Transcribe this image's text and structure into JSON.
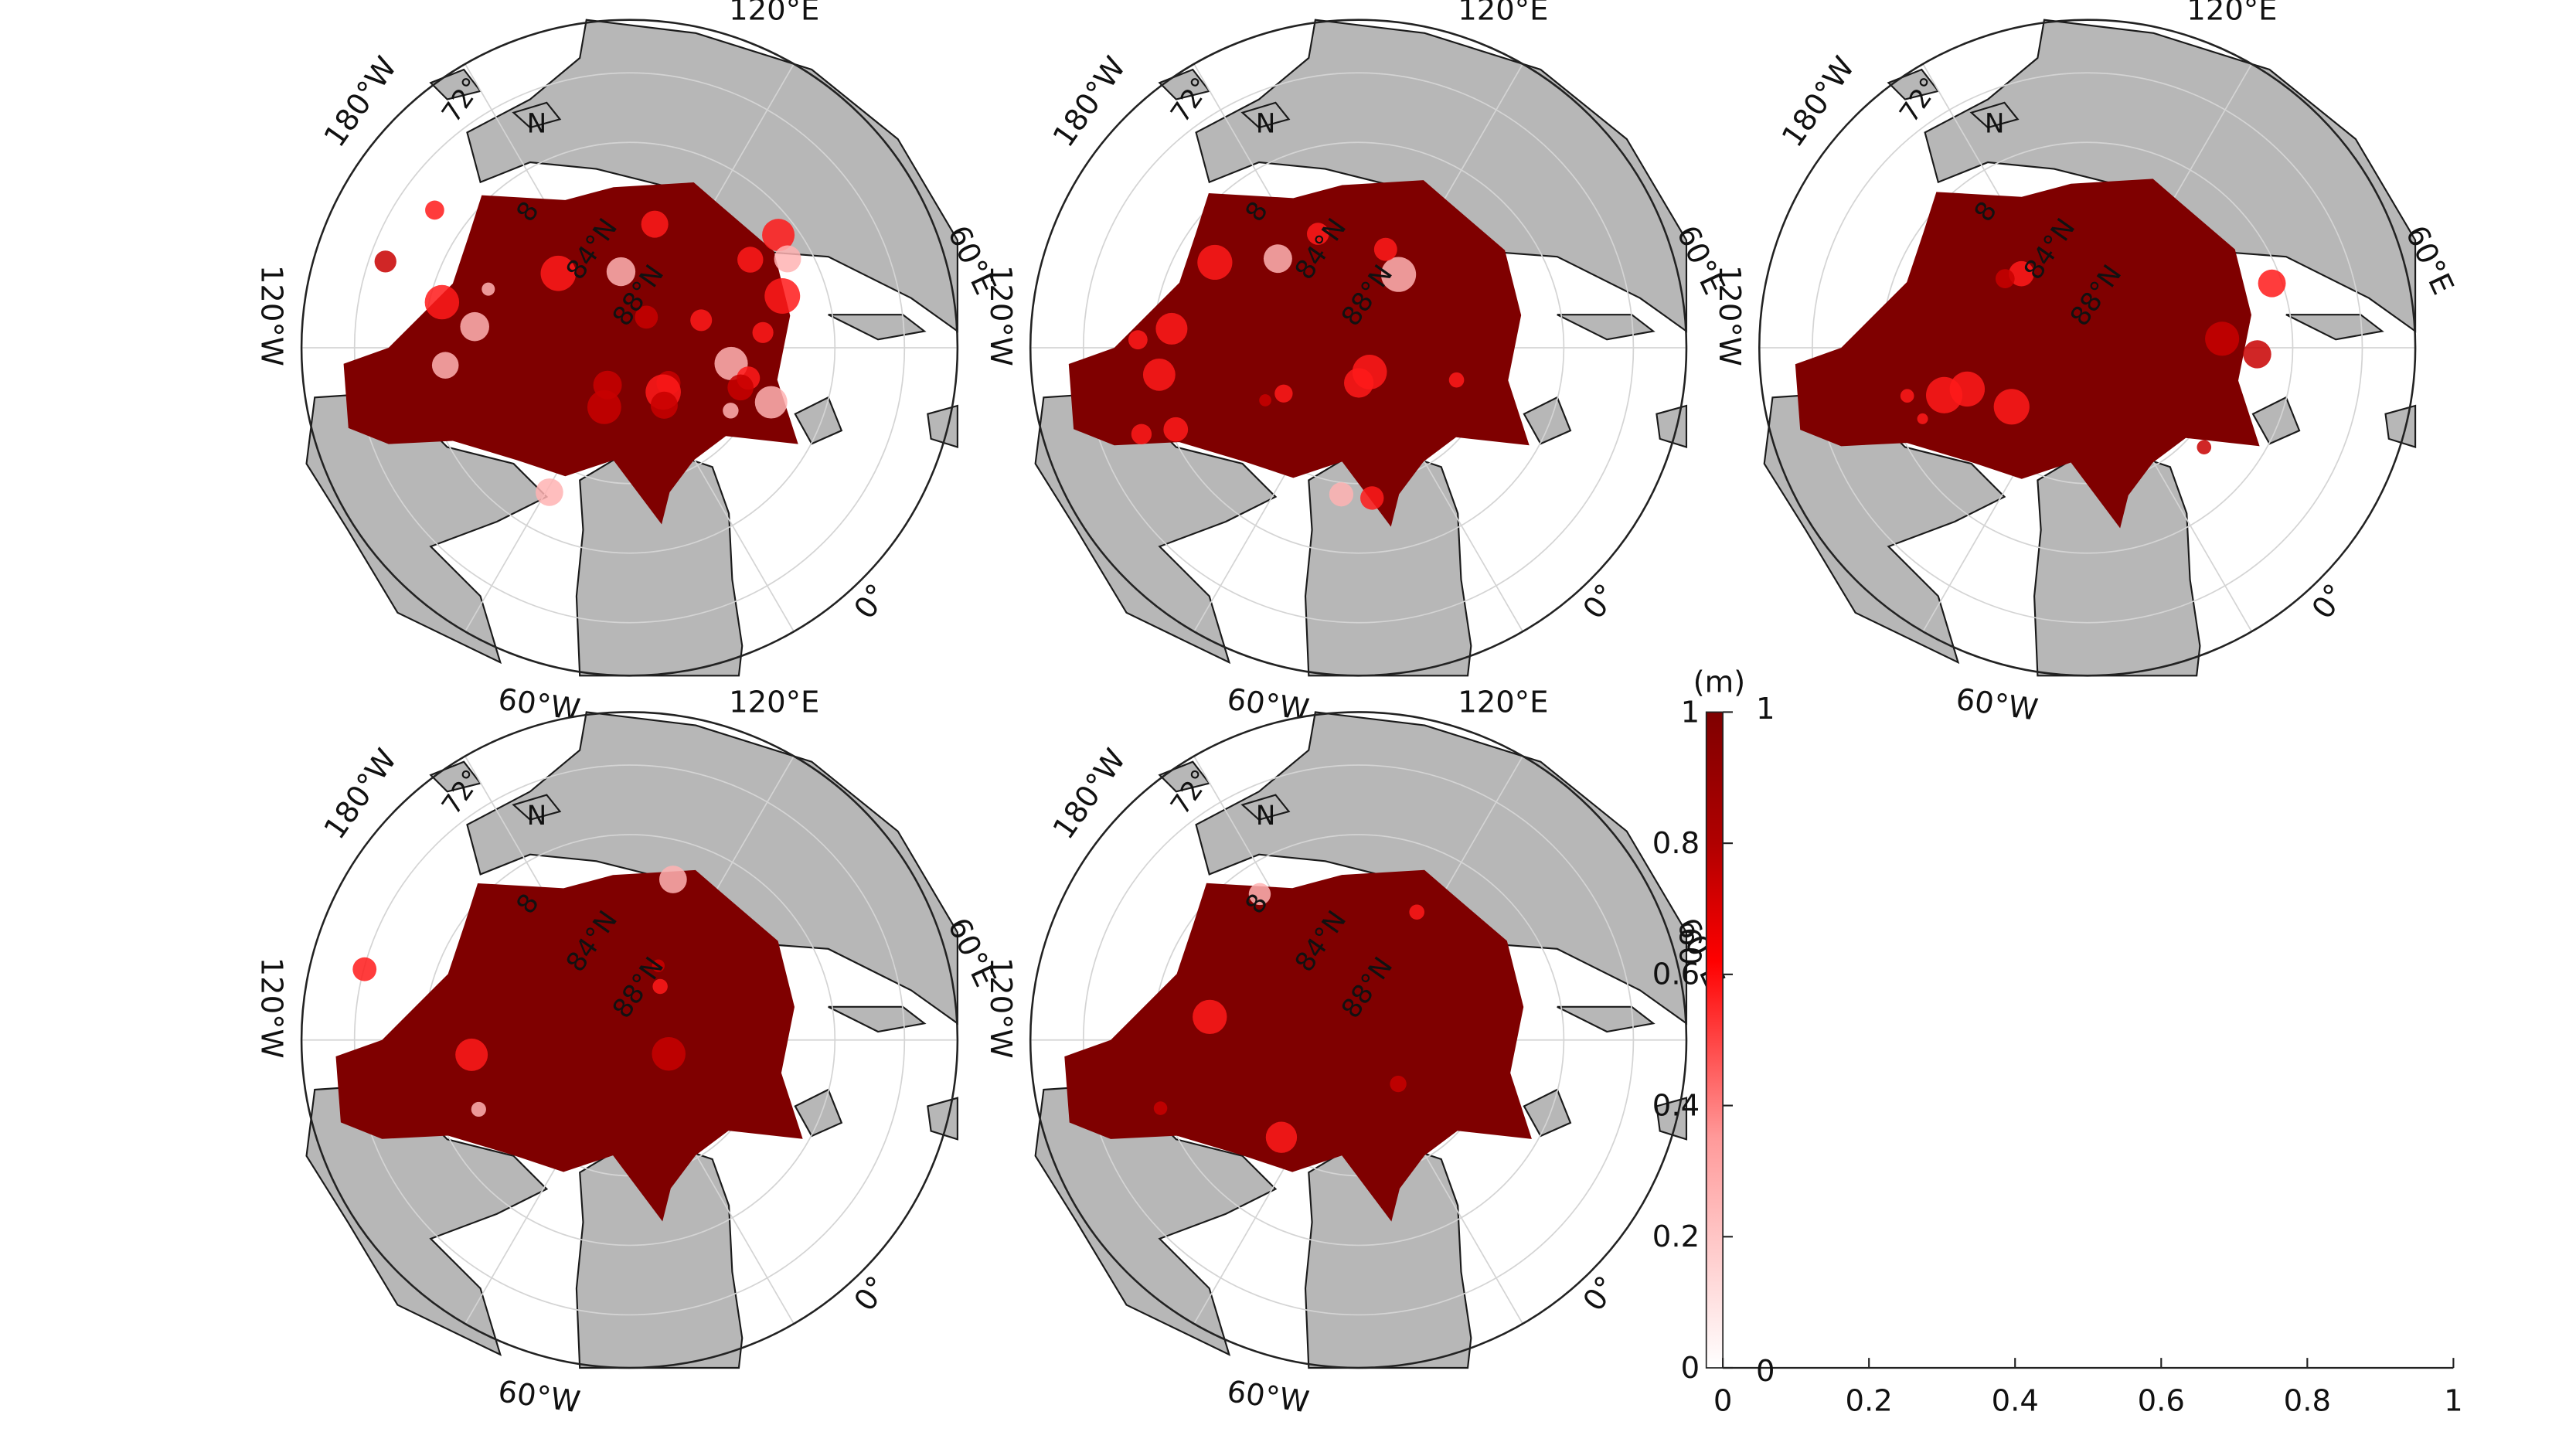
{
  "colors": {
    "land": "#b7b7b7",
    "land_stroke": "#1a1a1a",
    "ice_dark": "#7f0000",
    "ice_mid": "#c80000",
    "ice_bright": "#ff1a1a",
    "ice_light": "#ffb3b3",
    "grid": "#d4d4d4",
    "frame": "#222222"
  },
  "map_labels": {
    "lon_120E": "120°E",
    "lon_180W": "180°W",
    "lon_60E": "60°E",
    "lon_120W": "120°W",
    "lon_0": "0°",
    "lon_60W": "60°W",
    "lat_72": "72°",
    "lat_N": "N",
    "lat_84": "84°N",
    "lat_88": "88°N",
    "lat_8": "8"
  },
  "maps": [
    {
      "id": "map-1",
      "coverage": 0.62
    },
    {
      "id": "map-2",
      "coverage": 0.78
    },
    {
      "id": "map-3",
      "coverage": 0.88
    },
    {
      "id": "map-4",
      "coverage": 0.95
    },
    {
      "id": "map-5",
      "coverage": 0.96
    }
  ],
  "colorbar": {
    "unit": "(m)",
    "ticks": [
      "0",
      "0.2",
      "0.4",
      "0.6",
      "0.8",
      "1"
    ],
    "range": [
      0,
      1
    ]
  },
  "empty_axes": {
    "xticks": [
      "0",
      "0.2",
      "0.4",
      "0.6",
      "0.8",
      "1"
    ],
    "xlim": [
      0,
      1
    ],
    "ylim": [
      0,
      1
    ],
    "overlap_labels": [
      "1",
      "0",
      "60"
    ]
  }
}
